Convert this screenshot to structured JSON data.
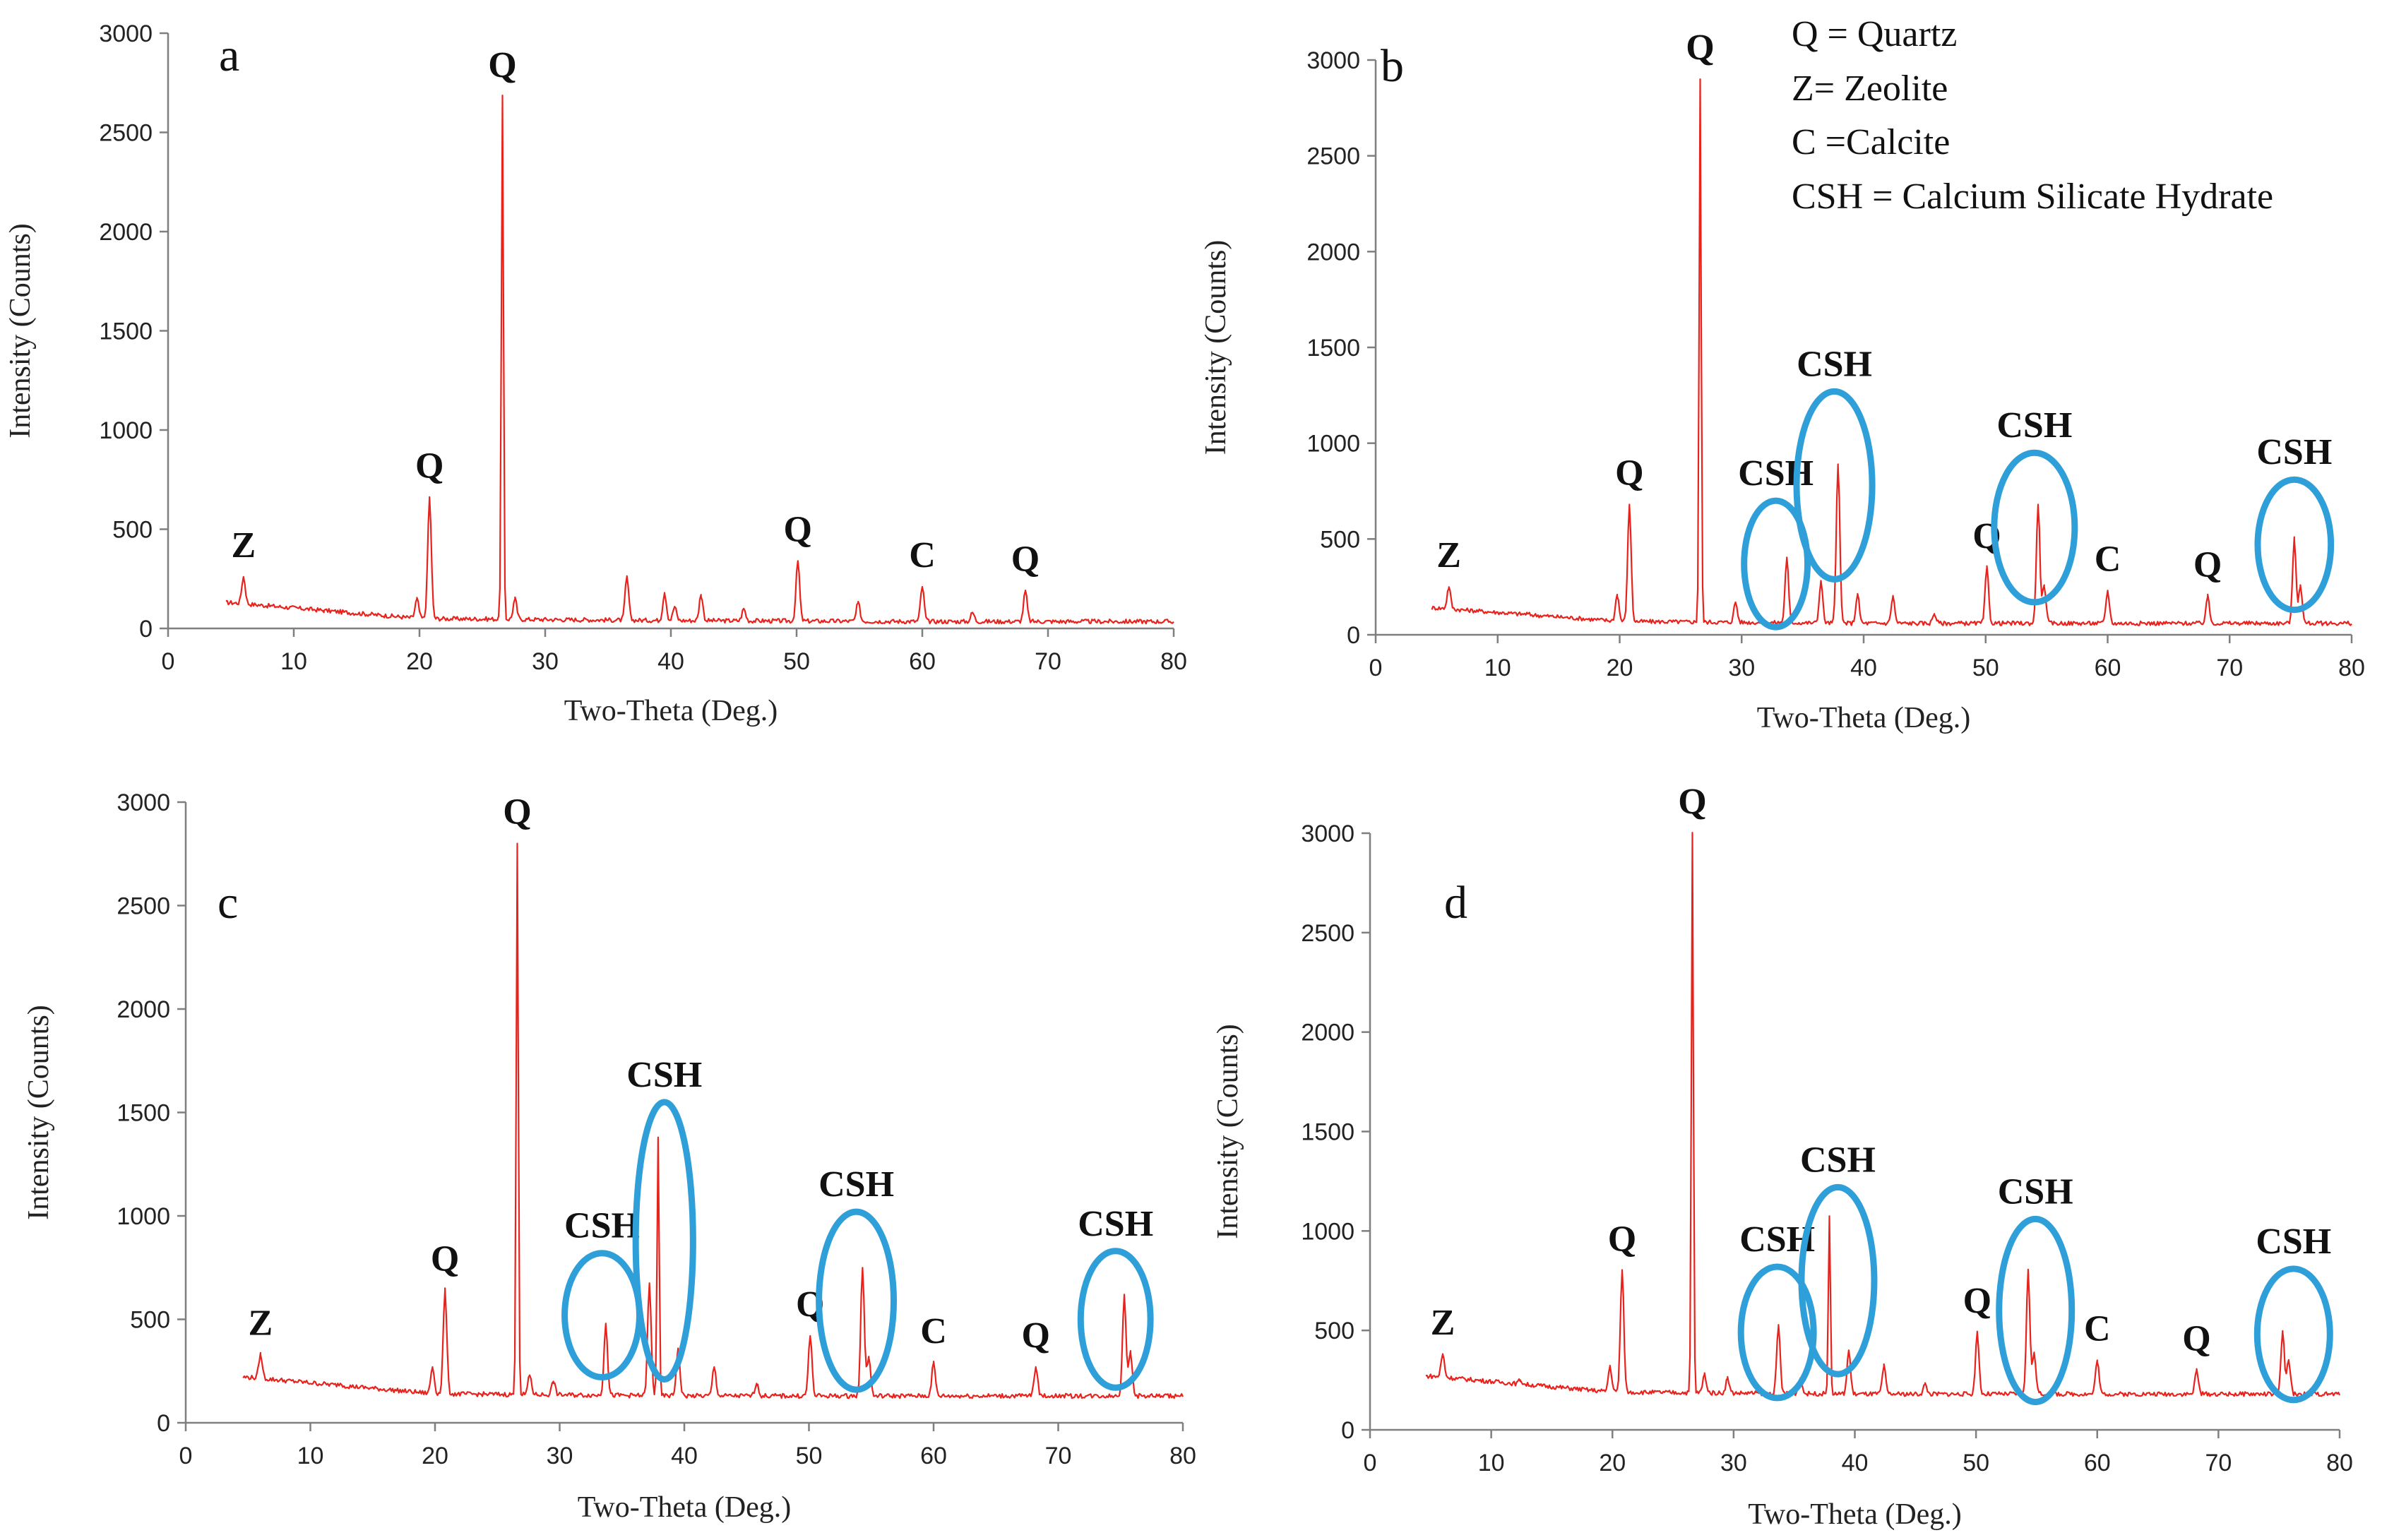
{
  "figure": {
    "legend": [
      "Q = Quartz",
      "Z= Zeolite",
      "C =Calcite",
      "CSH = Calcium  Silicate  Hydrate"
    ],
    "colors": {
      "trace": "#e8221c",
      "ellipse": "#2e9fd8",
      "axis": "#7f7f7f"
    }
  },
  "chart_data": [
    {
      "type": "line",
      "panel": "a",
      "xlabel": "Two-Theta (Deg.)",
      "ylabel": "Intensity (Counts)",
      "xlim": [
        0,
        80
      ],
      "ylim": [
        0,
        3000
      ],
      "xticks": [
        0,
        10,
        20,
        30,
        40,
        50,
        60,
        70,
        80
      ],
      "yticks": [
        0,
        500,
        1000,
        1500,
        2000,
        2500,
        3000
      ],
      "baseline": [
        [
          5,
          130
        ],
        [
          20,
          50
        ],
        [
          40,
          40
        ],
        [
          60,
          35
        ],
        [
          80,
          35
        ]
      ],
      "peaks": [
        [
          6,
          260
        ],
        [
          12.4,
          90
        ],
        [
          19.8,
          150
        ],
        [
          20.8,
          660
        ],
        [
          26.6,
          2680
        ],
        [
          27.6,
          150
        ],
        [
          36.5,
          260
        ],
        [
          39.5,
          180
        ],
        [
          40.3,
          110
        ],
        [
          42.4,
          170
        ],
        [
          45.8,
          100
        ],
        [
          50.1,
          340
        ],
        [
          54.9,
          130
        ],
        [
          60,
          210
        ],
        [
          64,
          80
        ],
        [
          68.2,
          190
        ]
      ],
      "annotations": [
        {
          "text": "Z",
          "x": 6,
          "y": 260
        },
        {
          "text": "Q",
          "x": 20.8,
          "y": 660
        },
        {
          "text": "Q",
          "x": 26.6,
          "y": 2680
        },
        {
          "text": "Q",
          "x": 50.1,
          "y": 340
        },
        {
          "text": "C",
          "x": 60,
          "y": 210
        },
        {
          "text": "Q",
          "x": 68.2,
          "y": 190
        }
      ],
      "csh_regions": []
    },
    {
      "type": "line",
      "panel": "b",
      "xlabel": "Two-Theta (Deg.)",
      "ylabel": "Intensity (Counts)",
      "xlim": [
        0,
        80
      ],
      "ylim": [
        0,
        3000
      ],
      "xticks": [
        0,
        10,
        20,
        30,
        40,
        50,
        60,
        70,
        80
      ],
      "yticks": [
        0,
        500,
        1000,
        1500,
        2000,
        2500,
        3000
      ],
      "baseline": [
        [
          5,
          140
        ],
        [
          20,
          70
        ],
        [
          40,
          60
        ],
        [
          60,
          60
        ],
        [
          80,
          60
        ]
      ],
      "peaks": [
        [
          6,
          250
        ],
        [
          12.4,
          110
        ],
        [
          19.8,
          210
        ],
        [
          20.8,
          680
        ],
        [
          26.6,
          2900
        ],
        [
          29.5,
          170
        ],
        [
          33.7,
          400
        ],
        [
          36.5,
          280
        ],
        [
          37.9,
          890
        ],
        [
          39.5,
          210
        ],
        [
          42.4,
          200
        ],
        [
          45.8,
          110
        ],
        [
          50.1,
          350
        ],
        [
          54.3,
          680
        ],
        [
          54.8,
          260
        ],
        [
          60,
          230
        ],
        [
          68.2,
          200
        ],
        [
          75.3,
          500
        ],
        [
          75.8,
          260
        ]
      ],
      "annotations": [
        {
          "text": "Z",
          "x": 6,
          "y": 250
        },
        {
          "text": "Q",
          "x": 20.8,
          "y": 680
        },
        {
          "text": "Q",
          "x": 26.6,
          "y": 2900
        },
        {
          "text": "Q",
          "x": 50.1,
          "y": 350
        },
        {
          "text": "C",
          "x": 60,
          "y": 230
        },
        {
          "text": "Q",
          "x": 68.2,
          "y": 200
        }
      ],
      "csh_regions": [
        {
          "text": "CSH",
          "center": [
            32.8,
            370
          ],
          "half_width": [
            2.6,
            330
          ]
        },
        {
          "text": "CSH",
          "center": [
            37.6,
            780
          ],
          "half_width": [
            3.1,
            490
          ]
        },
        {
          "text": "CSH",
          "center": [
            54,
            560
          ],
          "half_width": [
            3.3,
            390
          ]
        },
        {
          "text": "CSH",
          "center": [
            75.3,
            470
          ],
          "half_width": [
            3.0,
            340
          ]
        }
      ]
    },
    {
      "type": "line",
      "panel": "c",
      "xlabel": "Two-Theta (Deg.)",
      "ylabel": "Intensity (Counts)",
      "xlim": [
        0,
        80
      ],
      "ylim": [
        0,
        3000
      ],
      "xticks": [
        0,
        10,
        20,
        30,
        40,
        50,
        60,
        70,
        80
      ],
      "yticks": [
        0,
        500,
        1000,
        1500,
        2000,
        2500,
        3000
      ],
      "baseline": [
        [
          5,
          220
        ],
        [
          20,
          140
        ],
        [
          40,
          130
        ],
        [
          60,
          130
        ],
        [
          80,
          130
        ]
      ],
      "peaks": [
        [
          6,
          330
        ],
        [
          12.4,
          190
        ],
        [
          19.8,
          270
        ],
        [
          20.8,
          640
        ],
        [
          26.6,
          2800
        ],
        [
          27.6,
          230
        ],
        [
          29.5,
          200
        ],
        [
          33.7,
          480
        ],
        [
          37.2,
          670
        ],
        [
          37.9,
          1380
        ],
        [
          39.5,
          360
        ],
        [
          42.4,
          270
        ],
        [
          45.8,
          190
        ],
        [
          50.1,
          420
        ],
        [
          54.3,
          750
        ],
        [
          54.8,
          320
        ],
        [
          60,
          290
        ],
        [
          68.2,
          270
        ],
        [
          75.3,
          620
        ],
        [
          75.8,
          340
        ]
      ],
      "annotations": [
        {
          "text": "Z",
          "x": 6,
          "y": 330
        },
        {
          "text": "Q",
          "x": 20.8,
          "y": 640
        },
        {
          "text": "Q",
          "x": 26.6,
          "y": 2800
        },
        {
          "text": "Q",
          "x": 50.1,
          "y": 420
        },
        {
          "text": "C",
          "x": 60,
          "y": 290
        },
        {
          "text": "Q",
          "x": 68.2,
          "y": 270
        }
      ],
      "csh_regions": [
        {
          "text": "CSH",
          "center": [
            33.4,
            520
          ],
          "half_width": [
            3.0,
            300
          ]
        },
        {
          "text": "CSH",
          "center": [
            38.4,
            880
          ],
          "half_width": [
            2.3,
            670
          ]
        },
        {
          "text": "CSH",
          "center": [
            53.8,
            590
          ],
          "half_width": [
            3.0,
            430
          ]
        },
        {
          "text": "CSH",
          "center": [
            74.6,
            500
          ],
          "half_width": [
            2.8,
            330
          ]
        }
      ]
    },
    {
      "type": "line",
      "panel": "d",
      "xlabel": "Two-Theta (Deg.)",
      "ylabel": "Intensity (Counts)",
      "xlim": [
        0,
        80
      ],
      "ylim": [
        0,
        3000
      ],
      "xticks": [
        0,
        10,
        20,
        30,
        40,
        50,
        60,
        70,
        80
      ],
      "yticks": [
        0,
        500,
        1000,
        1500,
        2000,
        2500,
        3000
      ],
      "baseline": [
        [
          5,
          270
        ],
        [
          20,
          190
        ],
        [
          40,
          180
        ],
        [
          60,
          180
        ],
        [
          80,
          180
        ]
      ],
      "peaks": [
        [
          6,
          380
        ],
        [
          12.4,
          250
        ],
        [
          19.8,
          320
        ],
        [
          20.8,
          800
        ],
        [
          26.6,
          3000
        ],
        [
          27.6,
          280
        ],
        [
          29.5,
          260
        ],
        [
          33.7,
          520
        ],
        [
          35.5,
          260
        ],
        [
          37.9,
          1070
        ],
        [
          39.5,
          400
        ],
        [
          42.4,
          320
        ],
        [
          45.8,
          230
        ],
        [
          50.1,
          490
        ],
        [
          54.3,
          800
        ],
        [
          54.8,
          390
        ],
        [
          60,
          350
        ],
        [
          68.2,
          300
        ],
        [
          75.3,
          490
        ],
        [
          75.8,
          350
        ]
      ],
      "annotations": [
        {
          "text": "Z",
          "x": 6,
          "y": 380
        },
        {
          "text": "Q",
          "x": 20.8,
          "y": 800
        },
        {
          "text": "Q",
          "x": 26.6,
          "y": 3000
        },
        {
          "text": "Q",
          "x": 50.1,
          "y": 490
        },
        {
          "text": "C",
          "x": 60,
          "y": 350
        },
        {
          "text": "Q",
          "x": 68.2,
          "y": 300
        }
      ],
      "csh_regions": [
        {
          "text": "CSH",
          "center": [
            33.6,
            490
          ],
          "half_width": [
            3.0,
            330
          ]
        },
        {
          "text": "CSH",
          "center": [
            38.6,
            750
          ],
          "half_width": [
            3.0,
            470
          ]
        },
        {
          "text": "CSH",
          "center": [
            54.9,
            600
          ],
          "half_width": [
            3.0,
            460
          ]
        },
        {
          "text": "CSH",
          "center": [
            76.2,
            480
          ],
          "half_width": [
            3.0,
            330
          ]
        }
      ]
    }
  ]
}
